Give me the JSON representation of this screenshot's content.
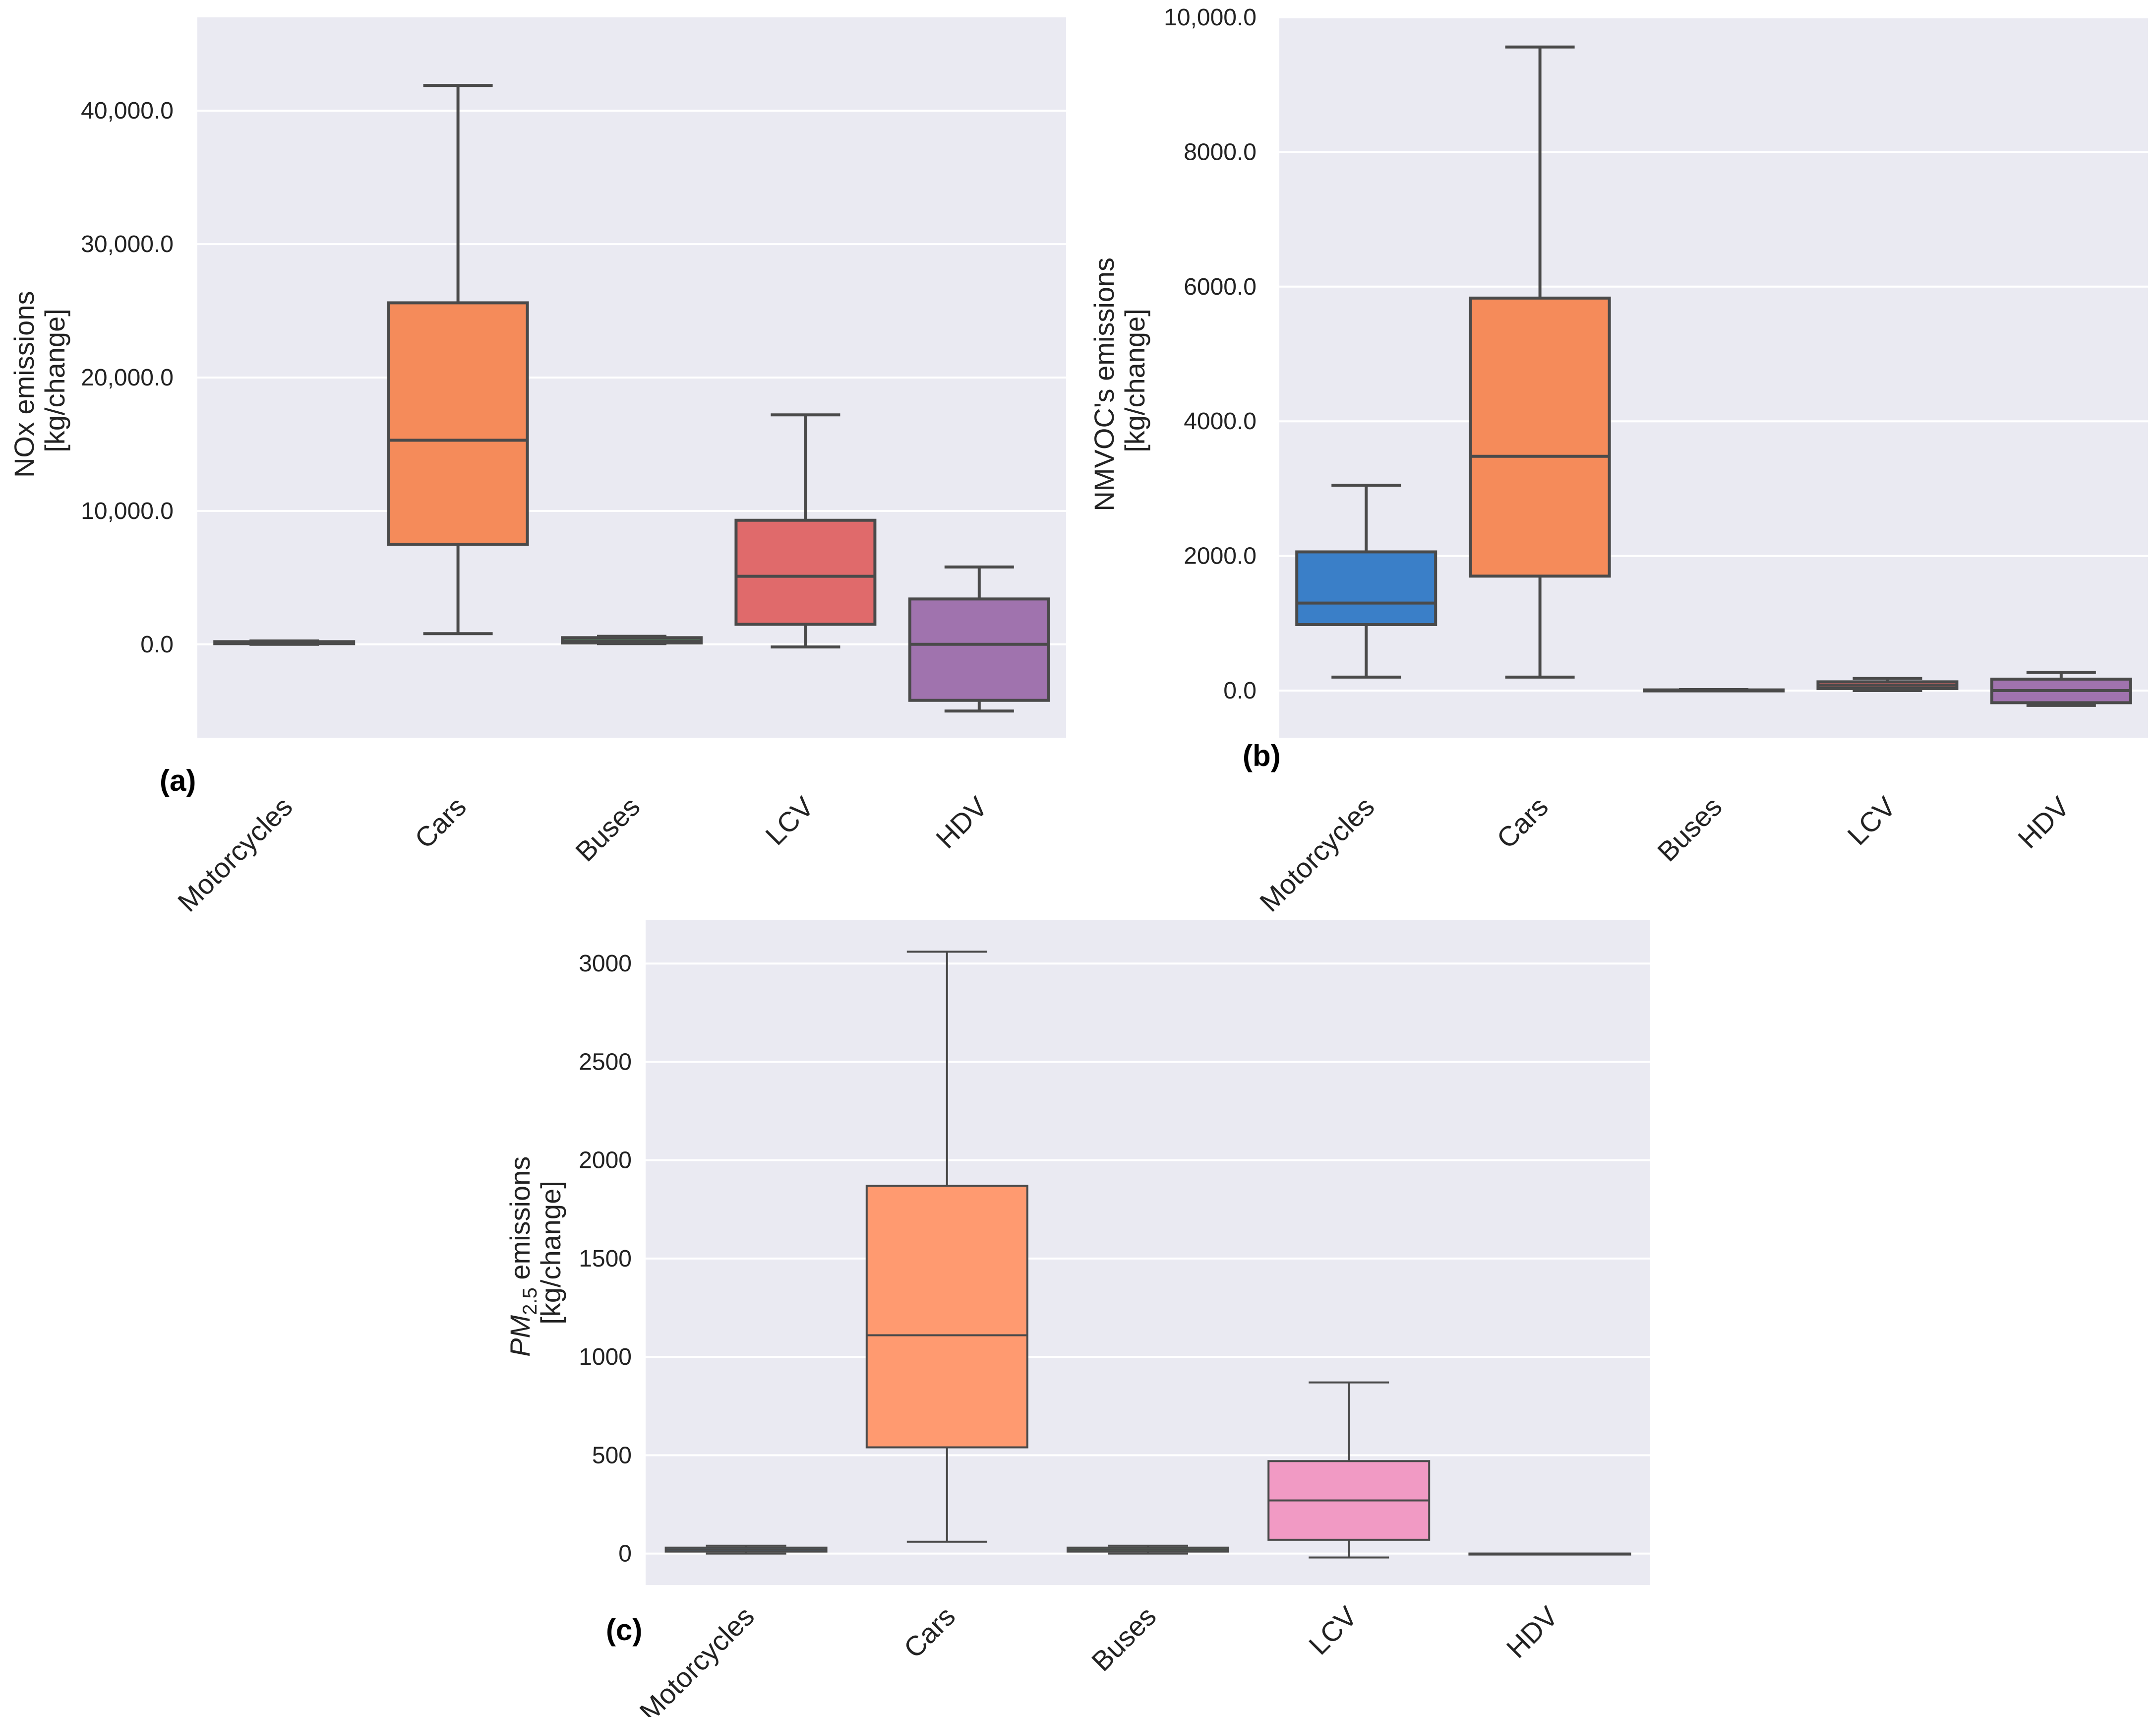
{
  "chart_data": [
    {
      "id": "a",
      "type": "box",
      "panel_label": "(a)",
      "ylabel_line1": "NOx emissions",
      "ylabel_line2": "[kg/change]",
      "ylim": [
        -7000,
        47000
      ],
      "yticks": [
        0,
        10000,
        20000,
        30000,
        40000
      ],
      "ytick_labels": [
        "0.0",
        "10,000.0",
        "20,000.0",
        "30,000.0",
        "40,000.0"
      ],
      "categories": [
        "Motorcycles",
        "Cars",
        "Buses",
        "LCV",
        "HDV"
      ],
      "colors": [
        "#3a7fd5",
        "#f58b5a",
        "#5aa06a",
        "#e06a6b",
        "#a073ae"
      ],
      "boxes": [
        {
          "min": 0,
          "q1": 50,
          "median": 100,
          "q3": 200,
          "max": 250
        },
        {
          "min": 800,
          "q1": 7500,
          "median": 15300,
          "q3": 25600,
          "max": 41900
        },
        {
          "min": 50,
          "q1": 100,
          "median": 250,
          "q3": 500,
          "max": 600
        },
        {
          "min": -200,
          "q1": 1500,
          "median": 5100,
          "q3": 9300,
          "max": 17200
        },
        {
          "min": -5000,
          "q1": -4200,
          "median": 0,
          "q3": 3400,
          "max": 5800
        }
      ]
    },
    {
      "id": "b",
      "type": "box",
      "panel_label": "(b)",
      "ylabel_line1": "NMVOC's emissions",
      "ylabel_line2": "[kg/change]",
      "ylim": [
        -700,
        10000
      ],
      "yticks": [
        0,
        2000,
        4000,
        6000,
        8000,
        10000
      ],
      "ytick_labels": [
        "0.0",
        "2000.0",
        "4000.0",
        "6000.0",
        "8000.0",
        "10,000.0"
      ],
      "categories": [
        "Motorcycles",
        "Cars",
        "Buses",
        "LCV",
        "HDV"
      ],
      "colors": [
        "#3a7fc8",
        "#f58b5a",
        "#5aa06a",
        "#e06a6b",
        "#a073ae"
      ],
      "boxes": [
        {
          "min": 200,
          "q1": 980,
          "median": 1300,
          "q3": 2060,
          "max": 3050
        },
        {
          "min": 200,
          "q1": 1700,
          "median": 3480,
          "q3": 5830,
          "max": 9560
        },
        {
          "min": 0,
          "q1": 0,
          "median": 5,
          "q3": 10,
          "max": 15
        },
        {
          "min": 0,
          "q1": 30,
          "median": 80,
          "q3": 130,
          "max": 180
        },
        {
          "min": -220,
          "q1": -180,
          "median": 0,
          "q3": 170,
          "max": 270
        }
      ]
    },
    {
      "id": "c",
      "type": "box",
      "panel_label": "(c)",
      "ylabel_prefix": "PM",
      "ylabel_sub": "2.5",
      "ylabel_suffix": " emissions",
      "ylabel_line2": "[kg/change]",
      "ylim": [
        -160,
        3220
      ],
      "yticks": [
        0,
        500,
        1000,
        1500,
        2000,
        2500,
        3000
      ],
      "ytick_labels": [
        "0",
        "500",
        "1000",
        "1500",
        "2000",
        "2500",
        "3000"
      ],
      "categories": [
        "Motorcycles",
        "Cars",
        "Buses",
        "LCV",
        "HDV"
      ],
      "colors": [
        "#5aa0e6",
        "#ff9a70",
        "#6fbf7a",
        "#f19ac4",
        "#bba0d0"
      ],
      "boxes": [
        {
          "min": 0,
          "q1": 10,
          "median": 20,
          "q3": 30,
          "max": 40
        },
        {
          "min": 60,
          "q1": 540,
          "median": 1110,
          "q3": 1870,
          "max": 3060
        },
        {
          "min": 0,
          "q1": 10,
          "median": 20,
          "q3": 30,
          "max": 40
        },
        {
          "min": -20,
          "q1": 70,
          "median": 270,
          "q3": 470,
          "max": 870
        },
        {
          "min": 0,
          "q1": 0,
          "median": 0,
          "q3": 0,
          "max": 0
        }
      ]
    }
  ]
}
